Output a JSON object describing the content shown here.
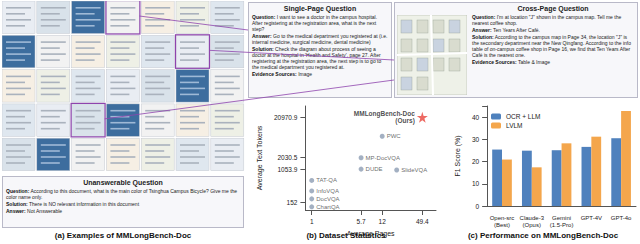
{
  "panels": {
    "examples": {
      "caption": "(a) Examples of MMLongBench-Doc",
      "unanswerable": {
        "title": "Unanswerable Question",
        "lines": [
          {
            "label": "Question:",
            "text": "According to this document, what is the main color of Tsinghua Campus Bicycle? Give me the color name only."
          },
          {
            "label": "Solution:",
            "text": "There is NO relevant information in this document"
          },
          {
            "label": "Answer:",
            "text": "Not Answerable"
          }
        ]
      },
      "single_page": {
        "title": "Single-Page Question",
        "lines": [
          {
            "label": "Question:",
            "text": "I want to see a doctor in the campus hospital. After registering at the registration area, what is the next step?"
          },
          {
            "label": "Answer:",
            "text": "Go to the medical department you registered at (i.e. internal medicine, surgical medicine, dental medicine)"
          },
          {
            "label": "Solution:",
            "text": "Check the diagram about process of seeing a doctor at the hospital in 'Health and Safety', page 27. After registering at the registration area, the next step is to go to the medical department you registered at."
          },
          {
            "label": "Evidence Sources:",
            "text": "Image"
          }
        ]
      },
      "cross_page": {
        "title": "Cross-Page Question",
        "lines": [
          {
            "label": "Question:",
            "text": "I'm at location \"J\" shown in the campus map. Tell me the nearest coffee shop."
          },
          {
            "label": "Answer:",
            "text": "Ten Years After Café."
          },
          {
            "label": "Solution:",
            "text": "According to the campus map in Page 34, the location \"J\" is the secondary department near the New Qingfang. According to the info table of on-campus coffee shop in Page 16, we find that Ten Years After Café is the nearest one."
          },
          {
            "label": "Evidence Sources:",
            "text": "Table & Image"
          }
        ]
      }
    }
  },
  "chart_data": [
    {
      "type": "scatter",
      "title": "(b) Dataset Statistics",
      "x_label": "Average Pages",
      "y_label": "Average Text Tokens",
      "log": true,
      "grid": false,
      "xlim": [
        0.8,
        80
      ],
      "xticks": [
        1,
        5.7,
        12,
        49.4
      ],
      "ylim": [
        100,
        40000
      ],
      "yticks": [
        152,
        1053.9,
        2030.5,
        20970.9
      ],
      "series": [
        {
          "marker": "circle",
          "color": "#8c9cb3",
          "labels": [
            "ChartQA",
            "DocVQA",
            "InfoVQA",
            "TAT-QA",
            "DUDE",
            "MP-DocVQA",
            "SlideVQA",
            "PWC"
          ],
          "x": [
            1,
            1,
            1,
            1,
            5.7,
            5.7,
            20,
            12
          ],
          "values": [
            120,
            190,
            300,
            550,
            1053.9,
            2030.5,
            1000,
            7000
          ]
        },
        {
          "marker": "star",
          "color": "#e8453c",
          "labels": [
            "MMLongBench-Doc\n(Ours)"
          ],
          "x": [
            49.4
          ],
          "values": [
            20970.9
          ]
        }
      ]
    },
    {
      "type": "bar",
      "title": "(c) Performance on MMLongBench-Doc",
      "y_label": "F1 Score (%)",
      "categories": [
        "Open-src\n(Best)",
        "Claude-3\n(Opus)",
        "Gemini\n(1.5-Pro)",
        "GPT-4V",
        "GPT-4o"
      ],
      "series": [
        {
          "name": "OCR + LLM",
          "color": "#4f81bd",
          "values": [
            25.4,
            24.9,
            25.1,
            26.6,
            30.5
          ]
        },
        {
          "name": "LVLM",
          "color": "#f4a64c",
          "values": [
            20.9,
            17.4,
            28.2,
            31.2,
            42.8
          ]
        }
      ],
      "ylim": [
        0,
        45
      ],
      "yticks": [
        0,
        10,
        20,
        30,
        40
      ],
      "legend": "upper left",
      "grid": false
    }
  ]
}
